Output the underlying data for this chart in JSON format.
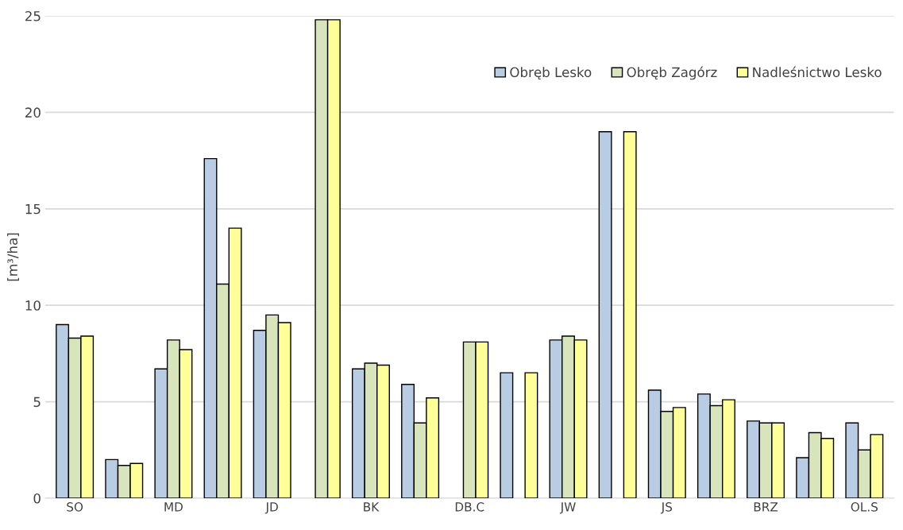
{
  "chart_data": {
    "type": "bar",
    "ylabel": "[m³/ha]",
    "categories": [
      "SO",
      null,
      "MD",
      null,
      "JD",
      null,
      "BK",
      null,
      "DB.C",
      null,
      "JW",
      null,
      "JS",
      null,
      "BRZ",
      null,
      "OL.S"
    ],
    "series": [
      {
        "name": "Obręb Lesko",
        "color": "#b8cce4",
        "values": [
          9.0,
          2.0,
          6.7,
          17.6,
          8.7,
          null,
          6.7,
          5.9,
          null,
          6.5,
          8.2,
          19.0,
          5.6,
          5.4,
          4.0,
          2.1,
          3.9
        ]
      },
      {
        "name": "Obręb Zagórz",
        "color": "#d7e4bc",
        "values": [
          8.3,
          1.7,
          8.2,
          11.1,
          9.5,
          24.8,
          7.0,
          3.9,
          8.1,
          null,
          8.4,
          null,
          4.5,
          4.8,
          3.9,
          3.4,
          2.5
        ]
      },
      {
        "name": "Nadleśnictwo Lesko",
        "color": "#ffff99",
        "values": [
          8.4,
          1.8,
          7.7,
          14.0,
          9.1,
          24.8,
          6.9,
          5.2,
          8.1,
          6.5,
          8.2,
          19.0,
          4.7,
          5.1,
          3.9,
          3.1,
          3.3
        ]
      }
    ],
    "ylim": [
      0,
      25
    ],
    "yticks": [
      0,
      5,
      10,
      15,
      20,
      25
    ],
    "grid": "y",
    "legend": "top right"
  }
}
